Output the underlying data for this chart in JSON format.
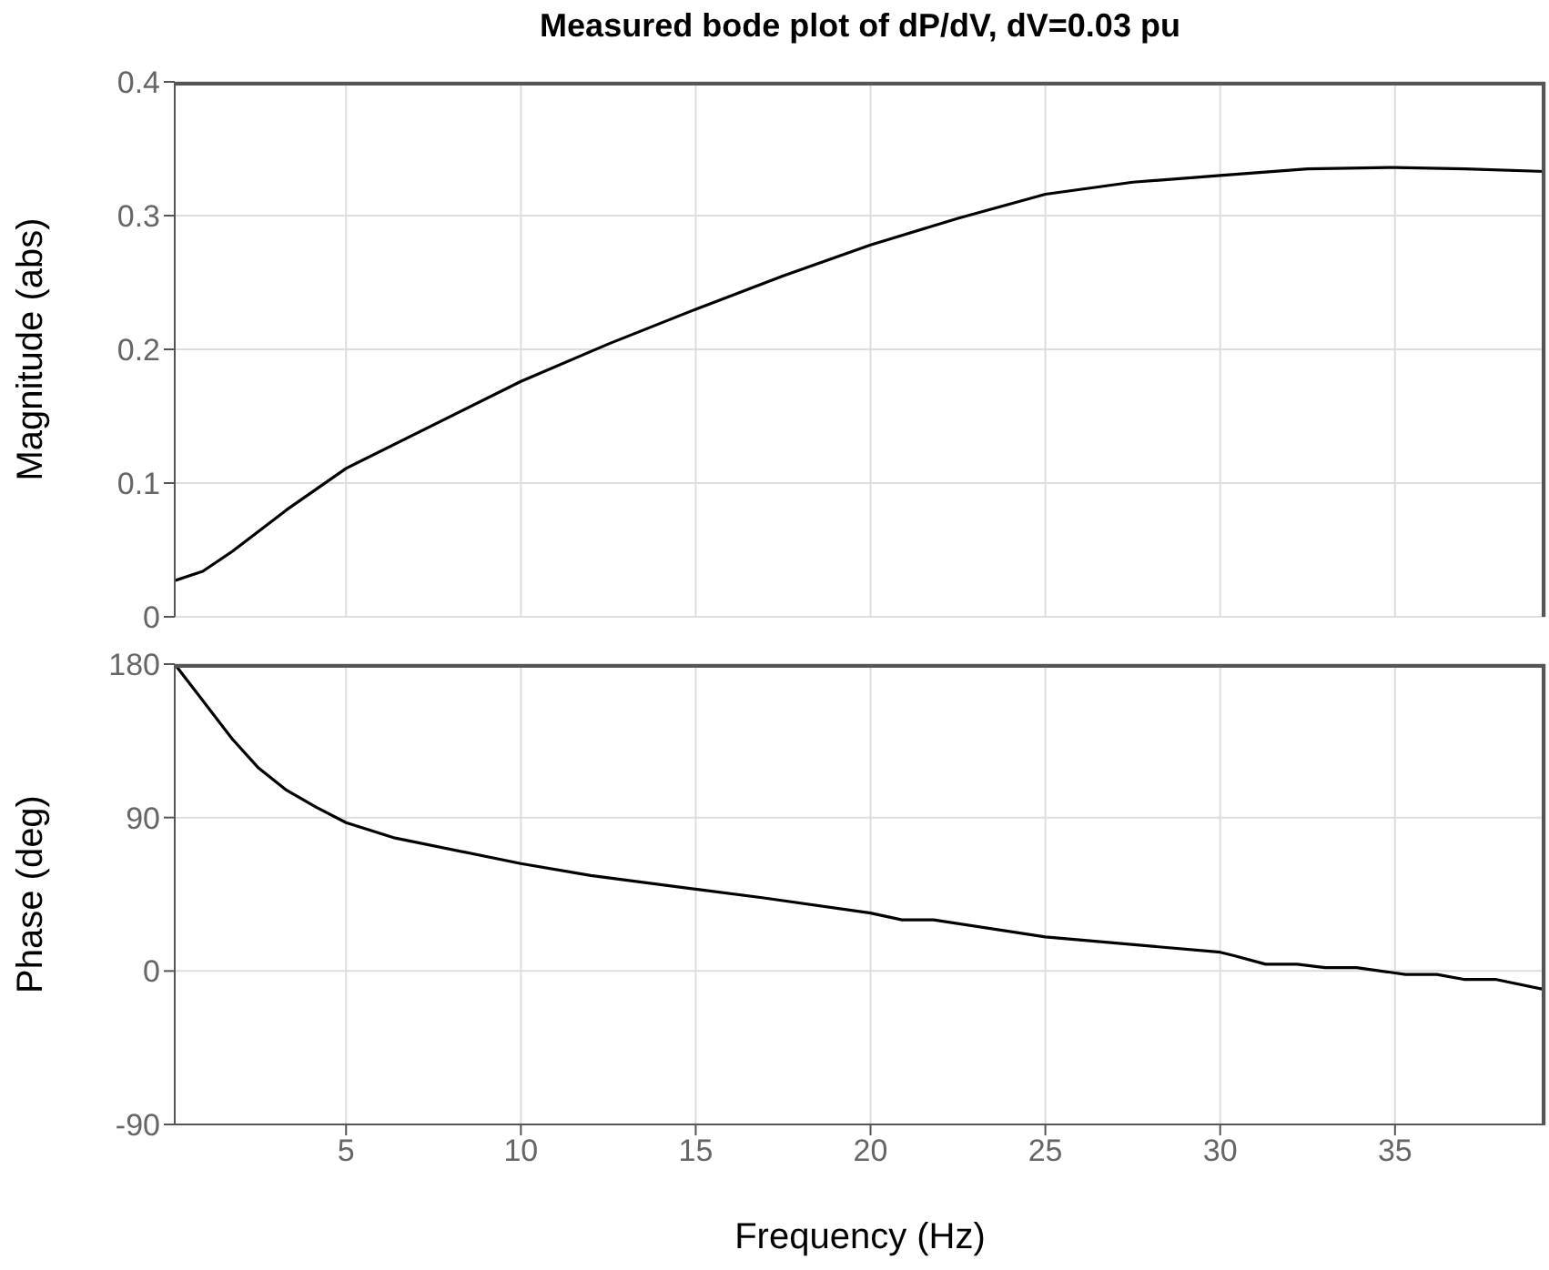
{
  "chart_data": [
    {
      "type": "line",
      "title": "Measured bode plot of dP/dV, dV=0.03 pu",
      "ylabel": "Magnitude (abs)",
      "x": [
        0.1,
        0.9,
        1.75,
        3.3,
        5,
        10,
        12.5,
        15,
        17.5,
        20,
        22.5,
        25,
        27.5,
        30,
        32.5,
        35,
        37,
        39.3
      ],
      "series": [
        {
          "color": "#000000",
          "values": [
            0.027,
            0.034,
            0.049,
            0.08,
            0.111,
            0.176,
            0.204,
            0.23,
            0.255,
            0.278,
            0.298,
            0.316,
            0.325,
            0.33,
            0.335,
            0.336,
            0.335,
            0.333
          ]
        }
      ],
      "xlim": [
        0.1,
        39.3
      ],
      "xticks": [
        5,
        10,
        15,
        20,
        25,
        30,
        35
      ],
      "ylim": [
        0,
        0.4
      ],
      "yticks": [
        0,
        0.1,
        0.2,
        0.3,
        0.4
      ],
      "grid": true,
      "tick_labels": "y"
    },
    {
      "type": "line",
      "xlabel": "Frequency  (Hz)",
      "ylabel": "Phase (deg)",
      "x": [
        0.1,
        1.75,
        2.5,
        3.3,
        4.15,
        5,
        6.4,
        10,
        12,
        15,
        16.9,
        20,
        20.9,
        21.8,
        25,
        30,
        30.4,
        31.3,
        32.2,
        33,
        33.9,
        35.3,
        36.2,
        37,
        37.9,
        39.3
      ],
      "series": [
        {
          "color": "#000000",
          "values": [
            180,
            136,
            119,
            106,
            96,
            87,
            78,
            63,
            56,
            48,
            43,
            34,
            30,
            30,
            20,
            11,
            9,
            4,
            4,
            2,
            2,
            -2,
            -2,
            -5,
            -5,
            -11
          ]
        }
      ],
      "xlim": [
        0.1,
        39.3
      ],
      "xticks": [
        5,
        10,
        15,
        20,
        25,
        30,
        35
      ],
      "ylim": [
        -90,
        180
      ],
      "yticks": [
        -90,
        0,
        90,
        180
      ],
      "grid": true
    }
  ]
}
